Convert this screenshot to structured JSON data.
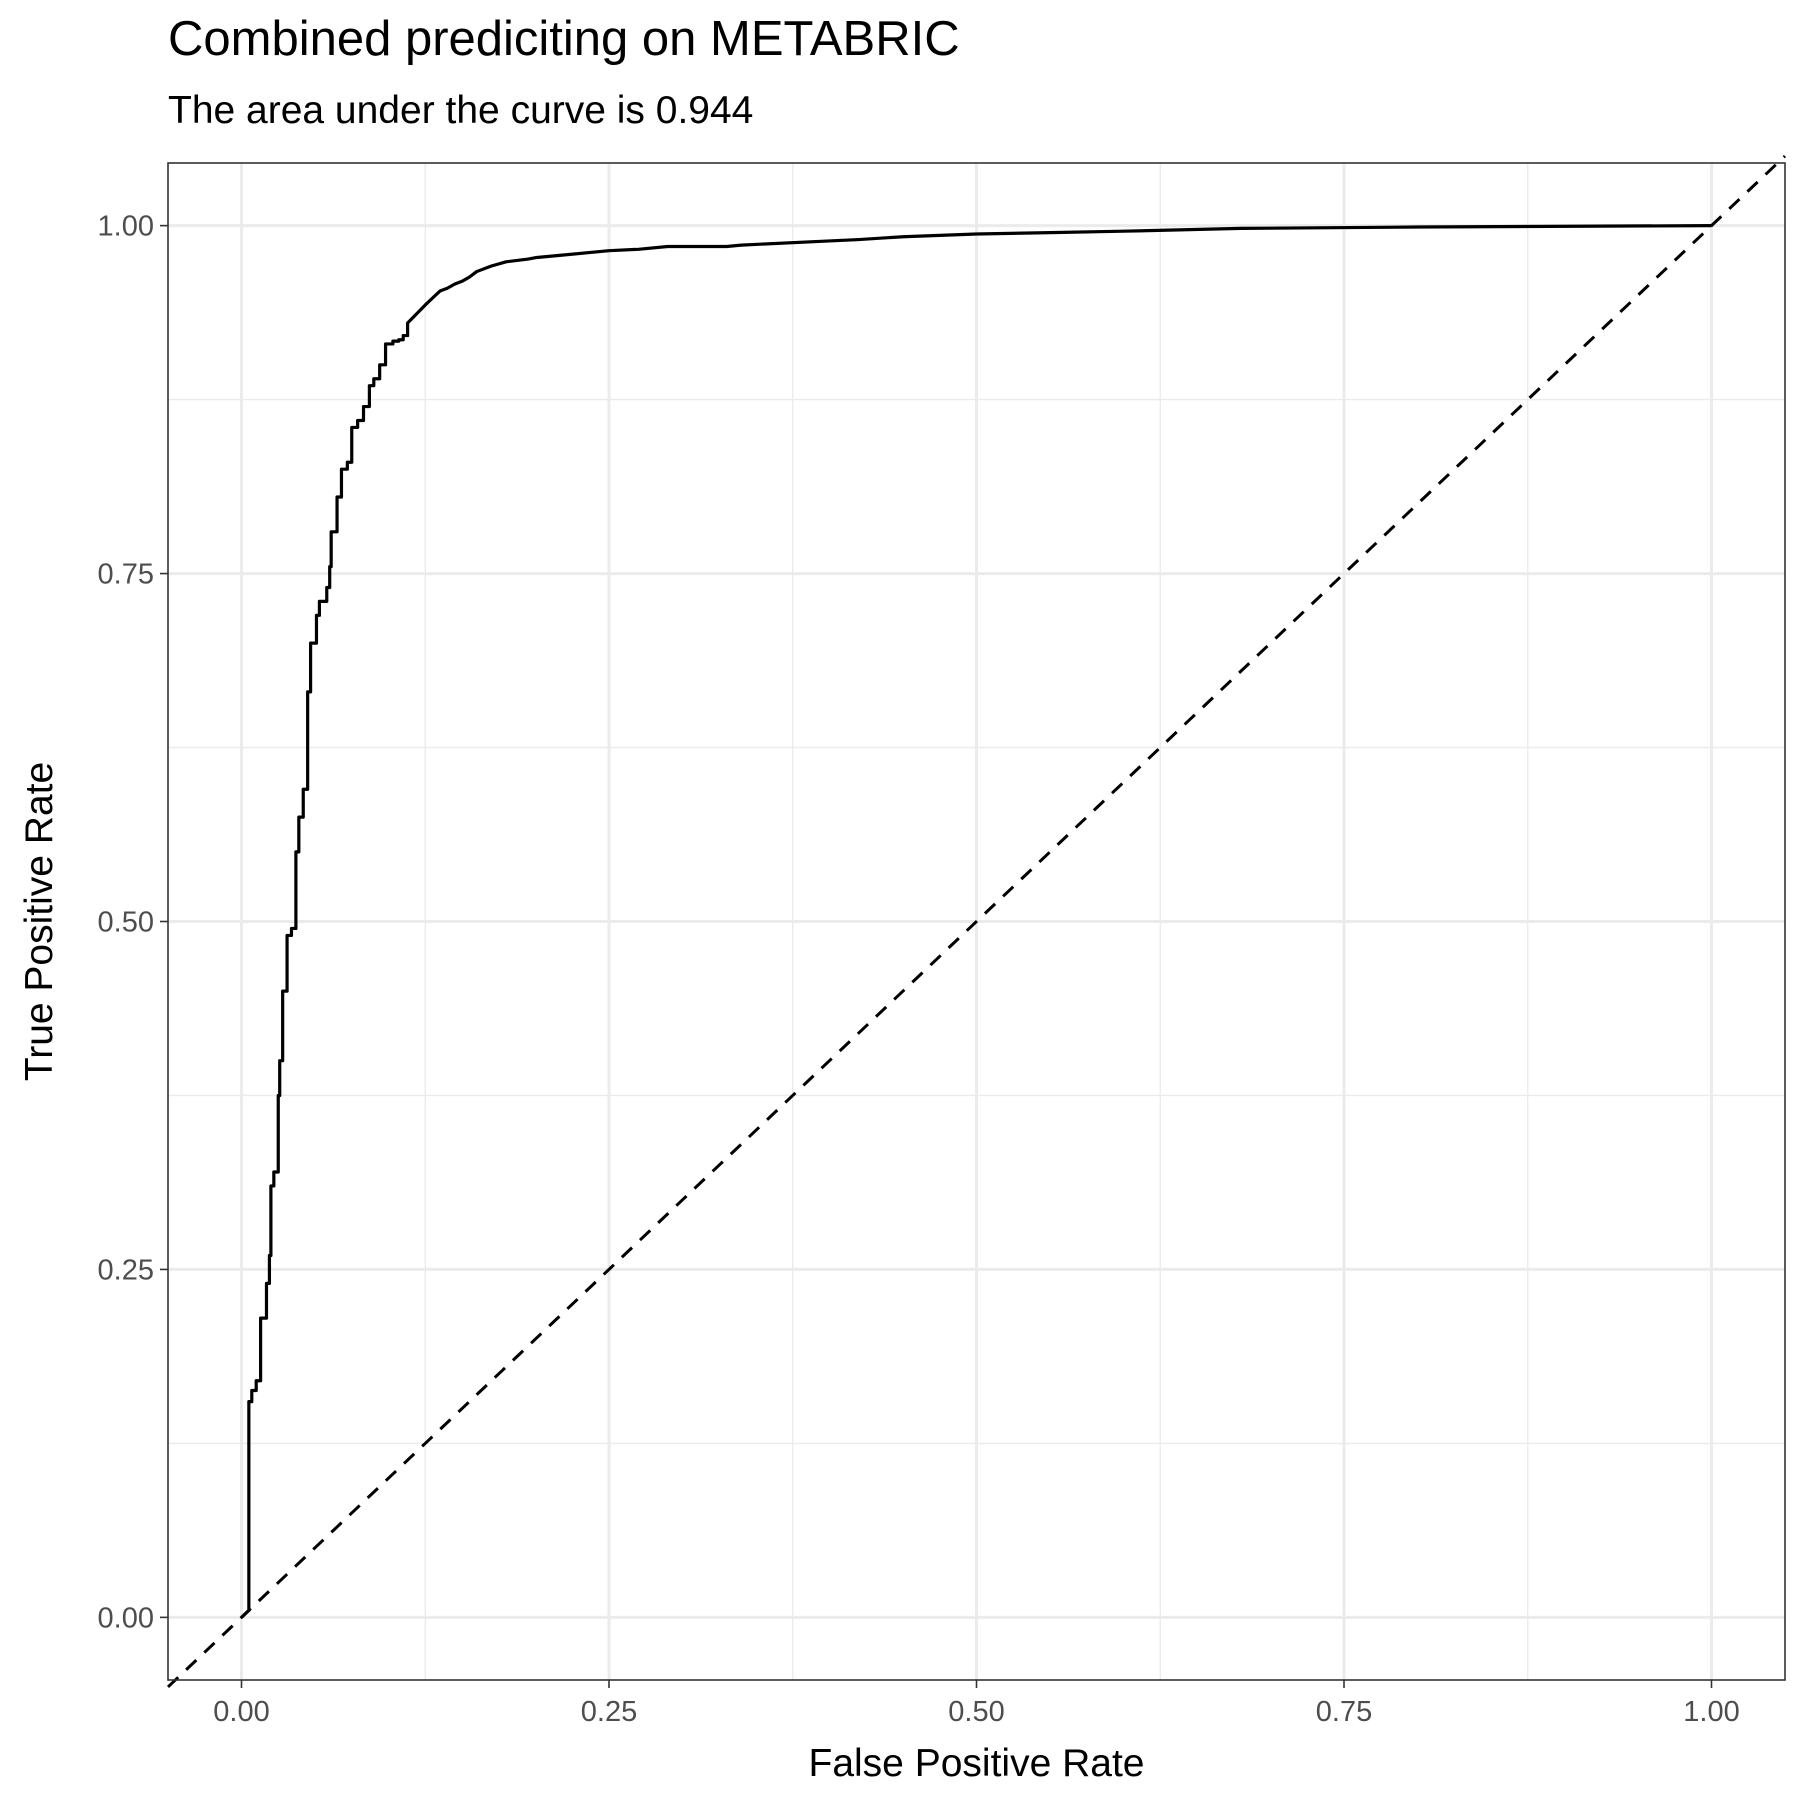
{
  "chart_data": {
    "type": "line",
    "title": "Combined prediciting on METABRIC",
    "subtitle": "The area under the curve is 0.944",
    "xlabel": "False Positive Rate",
    "ylabel": "True Positive Rate",
    "xlim": [
      -0.05,
      1.05
    ],
    "ylim": [
      -0.045,
      1.045
    ],
    "x_ticks": [
      0,
      0.25,
      0.5,
      0.75,
      1
    ],
    "x_tick_labels": [
      "0.00",
      "0.25",
      "0.50",
      "0.75",
      "1.00"
    ],
    "y_ticks": [
      0,
      0.25,
      0.5,
      0.75,
      1
    ],
    "y_tick_labels": [
      "0.00",
      "0.25",
      "0.50",
      "0.75",
      "1.00"
    ],
    "grid": true,
    "series": [
      {
        "style": "solid",
        "color": "#000000",
        "x": [
          0,
          0.005,
          0.005,
          0.007,
          0.007,
          0.01,
          0.01,
          0.013,
          0.013,
          0.017,
          0.017,
          0.019,
          0.019,
          0.02,
          0.02,
          0.022,
          0.022,
          0.025,
          0.025,
          0.026,
          0.026,
          0.028,
          0.028,
          0.031,
          0.031,
          0.034,
          0.034,
          0.037,
          0.037,
          0.039,
          0.039,
          0.042,
          0.042,
          0.045,
          0.045,
          0.047,
          0.047,
          0.051,
          0.051,
          0.053,
          0.053,
          0.058,
          0.058,
          0.06,
          0.06,
          0.061,
          0.061,
          0.065,
          0.065,
          0.068,
          0.068,
          0.072,
          0.072,
          0.075,
          0.075,
          0.079,
          0.079,
          0.083,
          0.083,
          0.087,
          0.087,
          0.09,
          0.09,
          0.094,
          0.094,
          0.098,
          0.098,
          0.103,
          0.103,
          0.107,
          0.107,
          0.11,
          0.11,
          0.113,
          0.113,
          0.125,
          0.13,
          0.135,
          0.14,
          0.145,
          0.15,
          0.155,
          0.16,
          0.17,
          0.18,
          0.195,
          0.2,
          0.21,
          0.22,
          0.25,
          0.27,
          0.29,
          0.33,
          0.34,
          0.4,
          0.42,
          0.45,
          0.5,
          0.55,
          0.6,
          0.68,
          0.8,
          1.0
        ],
        "y": [
          0,
          0.005,
          0.155,
          0.155,
          0.163,
          0.163,
          0.17,
          0.17,
          0.215,
          0.215,
          0.24,
          0.24,
          0.26,
          0.26,
          0.31,
          0.31,
          0.32,
          0.32,
          0.375,
          0.375,
          0.4,
          0.4,
          0.45,
          0.45,
          0.49,
          0.49,
          0.495,
          0.495,
          0.55,
          0.55,
          0.575,
          0.575,
          0.595,
          0.595,
          0.665,
          0.665,
          0.7,
          0.7,
          0.72,
          0.72,
          0.73,
          0.73,
          0.74,
          0.74,
          0.755,
          0.755,
          0.78,
          0.78,
          0.805,
          0.805,
          0.825,
          0.825,
          0.83,
          0.83,
          0.855,
          0.855,
          0.86,
          0.86,
          0.87,
          0.87,
          0.885,
          0.885,
          0.89,
          0.89,
          0.9,
          0.9,
          0.915,
          0.915,
          0.917,
          0.917,
          0.918,
          0.918,
          0.921,
          0.921,
          0.93,
          0.943,
          0.948,
          0.953,
          0.955,
          0.958,
          0.96,
          0.963,
          0.967,
          0.971,
          0.974,
          0.976,
          0.977,
          0.978,
          0.979,
          0.982,
          0.983,
          0.985,
          0.985,
          0.986,
          0.989,
          0.99,
          0.992,
          0.994,
          0.995,
          0.996,
          0.998,
          0.999,
          1.0
        ]
      },
      {
        "style": "dashed",
        "color": "#000000",
        "x": [
          -0.05,
          1.05
        ],
        "y": [
          -0.05,
          1.05
        ]
      }
    ]
  }
}
